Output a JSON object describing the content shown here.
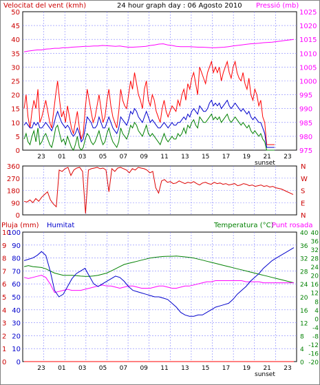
{
  "header": {
    "left_label": "Velocitat del vent (kmh)",
    "title": "24 hour graph day : 06 Agosto 2010",
    "right_label": "Pressió (mb)"
  },
  "colors": {
    "wind": "#ff0000",
    "gust_avg": "#0000cc",
    "wind_base": "#008000",
    "pressure": "#ff00ff",
    "direction": "#dd0000",
    "humidity": "#0000cc",
    "temperature": "#008000",
    "dewpoint": "#ff00ff",
    "rain": "#ff0000",
    "grid": "#8080ff",
    "axis_red": "#cc0000",
    "axis_pink": "#ff00ff",
    "axis_green": "#008000",
    "axis_blue": "#0000cc"
  },
  "chart_data": [
    {
      "type": "line",
      "name": "wind-pressure",
      "x_ticks": [
        "23",
        "01",
        "03",
        "05",
        "07",
        "09",
        "11",
        "13",
        "15",
        "17",
        "19",
        "21",
        "23"
      ],
      "x_note": "sunset",
      "left_axis": {
        "label": "Velocitat del vent (kmh)",
        "range": [
          0,
          50
        ],
        "ticks": [
          "0",
          "5",
          "10",
          "15",
          "20",
          "25",
          "30",
          "35",
          "40",
          "45",
          "50"
        ]
      },
      "right_axis": {
        "label": "Pressió (mb)",
        "range": [
          975,
          1025
        ],
        "ticks": [
          "975",
          "980",
          "985",
          "990",
          "995",
          "1000",
          "1005",
          "1010",
          "1015",
          "1020",
          "1025"
        ]
      },
      "series": [
        {
          "key": "gust",
          "values": [
            15,
            20,
            12,
            8,
            14,
            18,
            15,
            22,
            10,
            12,
            15,
            18,
            14,
            10,
            8,
            14,
            20,
            25,
            18,
            12,
            14,
            10,
            16,
            12,
            8,
            6,
            10,
            14,
            8,
            4,
            6,
            15,
            22,
            18,
            14,
            10,
            12,
            16,
            20,
            15,
            10,
            12,
            18,
            22,
            16,
            12,
            10,
            8,
            14,
            22,
            18,
            16,
            15,
            20,
            25,
            22,
            28,
            24,
            20,
            18,
            15,
            22,
            25,
            18,
            16,
            20,
            18,
            14,
            12,
            10,
            15,
            18,
            14,
            12,
            14,
            16,
            15,
            14,
            18,
            16,
            20,
            22,
            18,
            24,
            22,
            26,
            28,
            24,
            20,
            30,
            28,
            26,
            24,
            28,
            30,
            32,
            28,
            30,
            28,
            30,
            25,
            28,
            30,
            32,
            28,
            26,
            30,
            32,
            28,
            26,
            25,
            28,
            24,
            22,
            26,
            20,
            18,
            22,
            20,
            16,
            18,
            12,
            10,
            2,
            2,
            2,
            2,
            2
          ]
        },
        {
          "key": "wind_avg",
          "values": [
            9,
            10,
            9,
            8,
            8,
            10,
            9,
            10,
            8,
            8,
            9,
            10,
            9,
            8,
            7,
            9,
            12,
            14,
            12,
            10,
            9,
            8,
            9,
            8,
            6,
            5,
            6,
            8,
            6,
            3,
            4,
            8,
            12,
            11,
            10,
            8,
            8,
            9,
            12,
            10,
            8,
            8,
            10,
            12,
            10,
            8,
            7,
            6,
            8,
            12,
            11,
            10,
            9,
            11,
            14,
            13,
            15,
            14,
            12,
            11,
            10,
            12,
            14,
            12,
            10,
            11,
            10,
            9,
            8,
            8,
            9,
            10,
            9,
            8,
            9,
            10,
            9,
            9,
            10,
            10,
            11,
            12,
            11,
            13,
            12,
            14,
            15,
            14,
            13,
            16,
            15,
            14,
            14,
            15,
            17,
            18,
            16,
            17,
            16,
            17,
            15,
            16,
            17,
            18,
            16,
            15,
            16,
            17,
            16,
            15,
            14,
            15,
            14,
            13,
            14,
            12,
            11,
            12,
            11,
            10,
            10,
            8,
            6,
            1,
            1,
            1,
            1,
            1
          ]
        },
        {
          "key": "wind_base",
          "values": [
            4,
            6,
            3,
            2,
            5,
            7,
            3,
            8,
            2,
            3,
            5,
            6,
            4,
            2,
            1,
            4,
            8,
            9,
            6,
            3,
            4,
            2,
            5,
            3,
            1,
            0,
            2,
            5,
            1,
            0,
            1,
            4,
            6,
            5,
            3,
            2,
            3,
            5,
            7,
            4,
            2,
            3,
            6,
            8,
            5,
            3,
            2,
            1,
            3,
            8,
            6,
            5,
            4,
            6,
            9,
            8,
            10,
            9,
            7,
            6,
            5,
            7,
            9,
            6,
            5,
            6,
            5,
            4,
            3,
            2,
            4,
            6,
            4,
            3,
            4,
            5,
            4,
            4,
            6,
            5,
            6,
            8,
            6,
            9,
            8,
            10,
            11,
            9,
            8,
            12,
            11,
            10,
            10,
            11,
            12,
            13,
            11,
            12,
            11,
            12,
            10,
            11,
            12,
            13,
            11,
            10,
            11,
            12,
            11,
            10,
            9,
            10,
            9,
            8,
            9,
            7,
            6,
            7,
            6,
            5,
            6,
            4,
            3,
            0,
            0,
            0,
            0,
            0
          ]
        },
        {
          "key": "pressure",
          "values": [
            1010.5,
            1010.8,
            1011,
            1011.2,
            1011.2,
            1011.5,
            1011.6,
            1011.8,
            1011.8,
            1012,
            1012,
            1012.2,
            1012.3,
            1012.4,
            1012.5,
            1012.5,
            1012.6,
            1012.6,
            1012.8,
            1012.7,
            1012.6,
            1012.5,
            1012.6,
            1012.4,
            1012.2,
            1012.2,
            1012.3,
            1012.4,
            1012.5,
            1012.8,
            1013,
            1013.3,
            1013.4,
            1013,
            1012.8,
            1012.5,
            1012.4,
            1012.4,
            1012.4,
            1012.3,
            1012.2,
            1012.2,
            1012.1,
            1012,
            1012,
            1012.1,
            1012.2,
            1012.4,
            1012.6,
            1012.8,
            1013,
            1013.2,
            1013.4,
            1013.5,
            1013.6,
            1013.8,
            1013.9,
            1014,
            1014.2,
            1014.4,
            1014.6,
            1014.8,
            1015
          ]
        }
      ]
    },
    {
      "type": "line",
      "name": "wind-direction",
      "left_axis": {
        "range": [
          0,
          360
        ],
        "ticks": [
          "0",
          "90",
          "180",
          "270",
          "360"
        ]
      },
      "right_labels": [
        "N",
        "W",
        "S",
        "E",
        "N"
      ],
      "series": [
        {
          "key": "direction",
          "values": [
            100,
            95,
            110,
            90,
            120,
            100,
            130,
            150,
            170,
            110,
            80,
            60,
            330,
            320,
            340,
            350,
            290,
            330,
            345,
            350,
            320,
            10,
            330,
            340,
            345,
            350,
            340,
            345,
            330,
            170,
            340,
            320,
            345,
            350,
            340,
            330,
            310,
            340,
            330,
            350,
            345,
            340,
            330,
            310,
            320,
            200,
            160,
            250,
            260,
            240,
            245,
            230,
            235,
            250,
            240,
            230,
            240,
            235,
            245,
            230,
            220,
            235,
            240,
            230,
            225,
            240,
            230,
            235,
            225,
            230,
            220,
            225,
            230,
            215,
            220,
            230,
            225,
            215,
            220,
            210,
            215,
            220,
            210,
            215,
            205,
            210,
            200,
            195,
            190,
            180,
            170,
            160,
            150
          ]
        }
      ]
    },
    {
      "type": "line",
      "name": "humidity-temperature",
      "legend": [
        "Pluja (mm)",
        "Humitat",
        "Temperatura (°C)",
        "Punt rosada"
      ],
      "x_ticks": [
        "23",
        "01",
        "03",
        "05",
        "07",
        "09",
        "11",
        "13",
        "15",
        "17",
        "19",
        "21",
        "23"
      ],
      "x_note": "sunset",
      "left_rain_axis": {
        "label": "Pluja (mm)",
        "ticks": [
          "0",
          "1",
          "2",
          "3",
          "4",
          "5",
          "6",
          "7",
          "8",
          "9",
          "10"
        ]
      },
      "left_hum_axis": {
        "label": "Humitat",
        "range": [
          0,
          100
        ],
        "ticks": [
          "0",
          "10",
          "20",
          "30",
          "40",
          "50",
          "60",
          "70",
          "80",
          "90",
          "100"
        ]
      },
      "right_left_axis": {
        "ticks": [
          "0",
          "4",
          "8",
          "12",
          "16",
          "20",
          "24",
          "28",
          "32",
          "36",
          "40"
        ]
      },
      "right_axis": {
        "label": "Temperatura (°C)",
        "range": [
          -20,
          40
        ],
        "ticks": [
          "-20",
          "-16",
          "-12",
          "-8",
          "-4",
          "0",
          "4",
          "8",
          "12",
          "16",
          "20",
          "24",
          "28",
          "32",
          "36",
          "40"
        ]
      },
      "series": [
        {
          "key": "humidity",
          "values": [
            78,
            79,
            80,
            82,
            85,
            82,
            70,
            55,
            50,
            52,
            58,
            64,
            68,
            70,
            72,
            66,
            60,
            58,
            60,
            62,
            64,
            66,
            65,
            62,
            58,
            55,
            54,
            53,
            52,
            51,
            50,
            50,
            49,
            48,
            45,
            42,
            38,
            36,
            35,
            35,
            36,
            36,
            38,
            40,
            42,
            43,
            44,
            45,
            48,
            52,
            55,
            58,
            62,
            65,
            68,
            72,
            75,
            78,
            80,
            82,
            84,
            86,
            88
          ]
        },
        {
          "key": "temperature",
          "values": [
            24,
            24.5,
            24,
            23.8,
            23.6,
            23,
            22,
            21,
            20.5,
            20,
            20,
            20,
            19.8,
            19.6,
            19.5,
            19.5,
            19.7,
            20,
            20.5,
            21,
            22,
            23,
            24,
            25,
            25.5,
            26,
            26.5,
            27,
            27.5,
            28,
            28.3,
            28.5,
            28.7,
            28.8,
            28.8,
            28.9,
            28.7,
            28.5,
            28.3,
            28,
            27.5,
            27,
            26.5,
            26,
            25.5,
            25,
            24.5,
            24,
            23.5,
            23,
            22.5,
            22,
            21.5,
            21,
            20.5,
            20,
            19.5,
            19,
            18.5,
            18,
            17.5,
            17,
            16.5
          ]
        },
        {
          "key": "dewpoint",
          "values": [
            19,
            18.5,
            19,
            19.5,
            20,
            19,
            16,
            12,
            12.5,
            13,
            13.5,
            13,
            13,
            13,
            13.5,
            14,
            14.5,
            15,
            15.5,
            15,
            15,
            14.5,
            14,
            14.5,
            15,
            15,
            14.5,
            14,
            14,
            14,
            14.5,
            15,
            15,
            14.5,
            14,
            14,
            14.5,
            15,
            15,
            15.5,
            16,
            16.5,
            17,
            17,
            17.5,
            17.5,
            17.5,
            17.5,
            17.5,
            17.5,
            17.5,
            17,
            17,
            17,
            17,
            16.5,
            16.5,
            16.5,
            16.5,
            16.5,
            16.5,
            16.5,
            16.5
          ]
        },
        {
          "key": "rain",
          "values": [
            0,
            0,
            0,
            0,
            0,
            0,
            0,
            0,
            0,
            0,
            0,
            0,
            0,
            0,
            0,
            0,
            0,
            0,
            0,
            0,
            0,
            0,
            0,
            0,
            0,
            0,
            0,
            0,
            0,
            0,
            0,
            0,
            0,
            0,
            0,
            0,
            0,
            0,
            0,
            0,
            0,
            0,
            0,
            0,
            0,
            0,
            0,
            0,
            0,
            0,
            0,
            0,
            0,
            0,
            0,
            0,
            0,
            0,
            0,
            0,
            0,
            0,
            0
          ]
        }
      ]
    }
  ]
}
